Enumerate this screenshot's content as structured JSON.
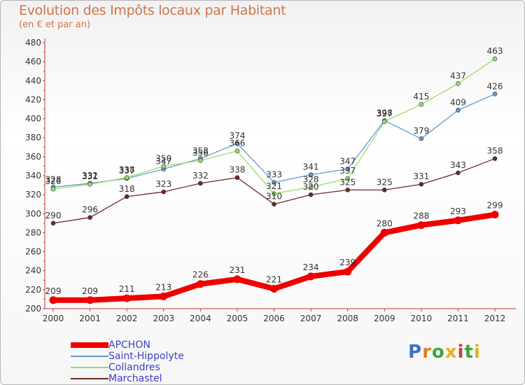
{
  "header": {
    "title": "Evolution des Impôts locaux par Habitant",
    "subtitle": "(en € et par an)"
  },
  "chart_data": {
    "type": "line",
    "x": [
      2000,
      2001,
      2002,
      2003,
      2004,
      2005,
      2006,
      2007,
      2008,
      2009,
      2010,
      2011,
      2012
    ],
    "ylim": [
      200,
      480
    ],
    "ytick_step": 20,
    "grid": false,
    "legend_position": "bottom-left",
    "series": [
      {
        "name": "APCHON",
        "color": "#ee0000",
        "thick": true,
        "values": [
          209,
          209,
          211,
          213,
          226,
          231,
          221,
          234,
          239,
          280,
          288,
          293,
          299
        ]
      },
      {
        "name": "Saint-Hippolyte",
        "color": "#6699cc",
        "thick": false,
        "values": [
          328,
          332,
          337,
          347,
          358,
          374,
          333,
          341,
          347,
          398,
          379,
          409,
          426
        ]
      },
      {
        "name": "Collandres",
        "color": "#99dd66",
        "thick": false,
        "values": [
          326,
          331,
          338,
          350,
          356,
          366,
          321,
          328,
          337,
          397,
          415,
          437,
          463
        ]
      },
      {
        "name": "Marchastel",
        "color": "#6b2a2a",
        "thick": false,
        "values": [
          290,
          296,
          318,
          323,
          332,
          338,
          310,
          320,
          325,
          325,
          331,
          343,
          358
        ]
      }
    ]
  },
  "logo": {
    "letters": [
      "P",
      "r",
      "o",
      "x",
      "i",
      "t",
      "i"
    ]
  }
}
